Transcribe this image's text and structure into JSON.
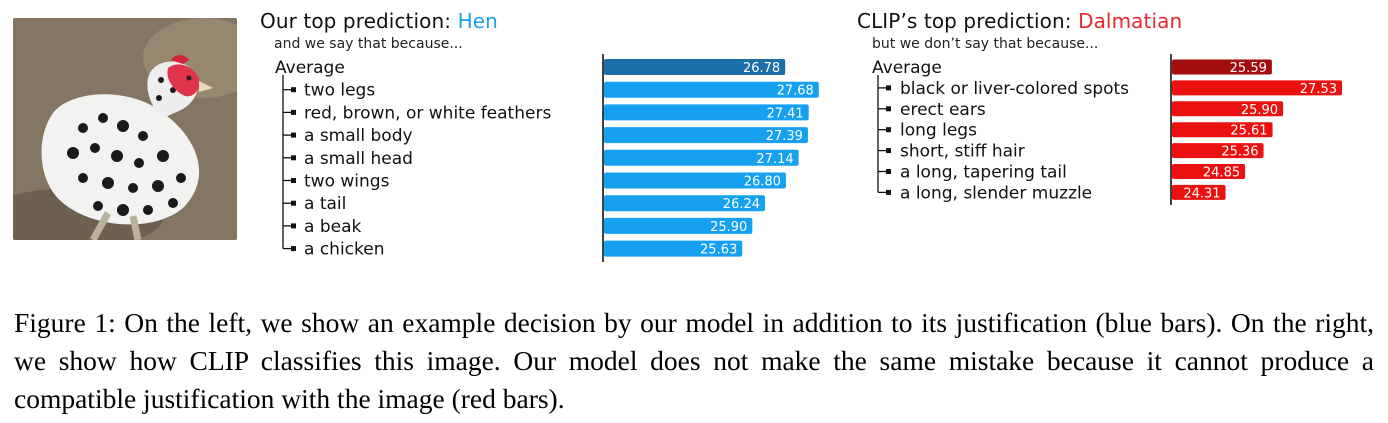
{
  "panels": [
    {
      "title_prefix": "Our top prediction: ",
      "title_class": "Hen",
      "title_class_color": "#1a9fe8",
      "subtitle": "and we say that because...",
      "average_color": "#1a6fa6",
      "bar_color": "#16a0f0"
    },
    {
      "title_prefix": "CLIP’s top prediction: ",
      "title_class": "Dalmatian",
      "title_class_color": "#e8282a",
      "subtitle": "but we don’t say that because...",
      "average_color": "#a30d0d",
      "bar_color": "#ec1111"
    }
  ],
  "chart_data": [
    {
      "type": "bar",
      "orientation": "horizontal",
      "categories": [
        "Average",
        "two legs",
        "red, brown, or white feathers",
        "a small body",
        "a small head",
        "two wings",
        "a tail",
        "a beak",
        "a chicken"
      ],
      "values": [
        26.78,
        27.68,
        27.41,
        27.39,
        27.14,
        26.8,
        26.24,
        25.9,
        25.63
      ],
      "labels": [
        "26.78",
        "27.68",
        "27.41",
        "27.39",
        "27.14",
        "26.80",
        "26.24",
        "25.90",
        "25.63"
      ],
      "xlim": [
        21.9,
        27.9
      ]
    },
    {
      "type": "bar",
      "orientation": "horizontal",
      "categories": [
        "Average",
        "black or liver-colored spots",
        "erect ears",
        "long legs",
        "short, stiff hair",
        "a long, tapering tail",
        "a long, slender muzzle"
      ],
      "values": [
        25.59,
        27.53,
        25.9,
        25.61,
        25.36,
        24.85,
        24.31
      ],
      "labels": [
        "25.59",
        "27.53",
        "25.90",
        "25.61",
        "25.36",
        "24.85",
        "24.31"
      ],
      "xlim": [
        22.8,
        28.0
      ]
    }
  ],
  "caption": "Figure 1: On the left, we show an example decision by our model in addition to its justification (blue bars). On the right, we show how CLIP classifies this image. Our model does not make the same mistake because it cannot produce a compatible justification with the image (red bars)."
}
